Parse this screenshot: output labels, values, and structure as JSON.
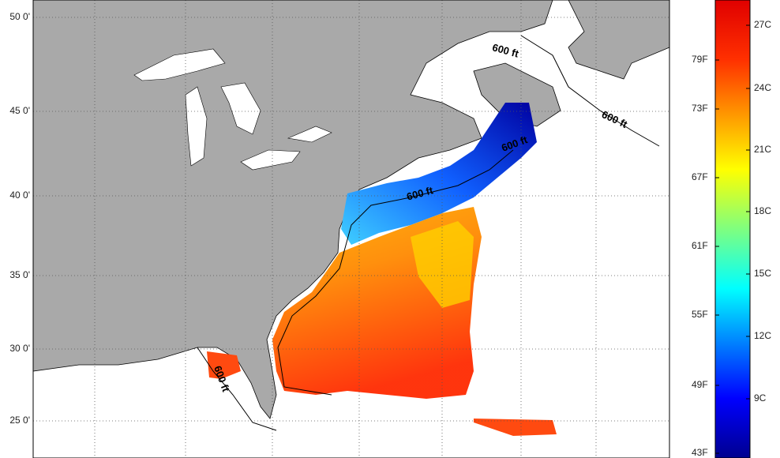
{
  "map": {
    "lat_labels": [
      "50 0'",
      "45 0'",
      "40 0'",
      "35 0'",
      "30 0'",
      "25 0'"
    ],
    "contour_labels": [
      "600 ft",
      "600 ft",
      "600 ft",
      "600 ft",
      "600 ft"
    ],
    "colorbar": {
      "fahrenheit": [
        "79F",
        "73F",
        "67F",
        "61F",
        "55F",
        "49F",
        "43F"
      ],
      "celsius": [
        "27C",
        "24C",
        "21C",
        "18C",
        "15C",
        "12C",
        "9C"
      ]
    }
  }
}
